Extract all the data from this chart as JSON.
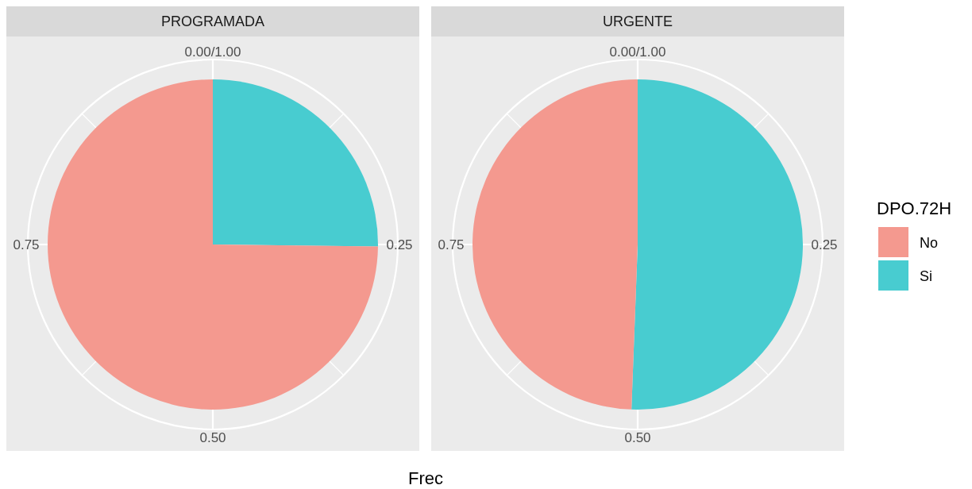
{
  "chart_data": [
    {
      "type": "pie",
      "title": "PROGRAMADA",
      "categories": [
        null,
        null
      ],
      "values": [
        0.748,
        0.252
      ],
      "colors": [
        "#f4998f",
        "#48ccd0"
      ],
      "annotations": [
        "0.00/1.00",
        "0.25",
        "0.50",
        "0.75"
      ],
      "grid": true,
      "xlabel": "Frec"
    },
    {
      "type": "pie",
      "title": "URGENTE",
      "categories": [
        "No",
        "Si"
      ],
      "values": [
        0.494,
        0.506
      ],
      "colors": [
        "#f4998f",
        "#48ccd0"
      ],
      "annotations": [
        "0.00/1.00",
        "0.25",
        "0.50",
        "0.75"
      ],
      "grid": true,
      "legend": "right",
      "legend_title": "DPO.72H"
    }
  ]
}
